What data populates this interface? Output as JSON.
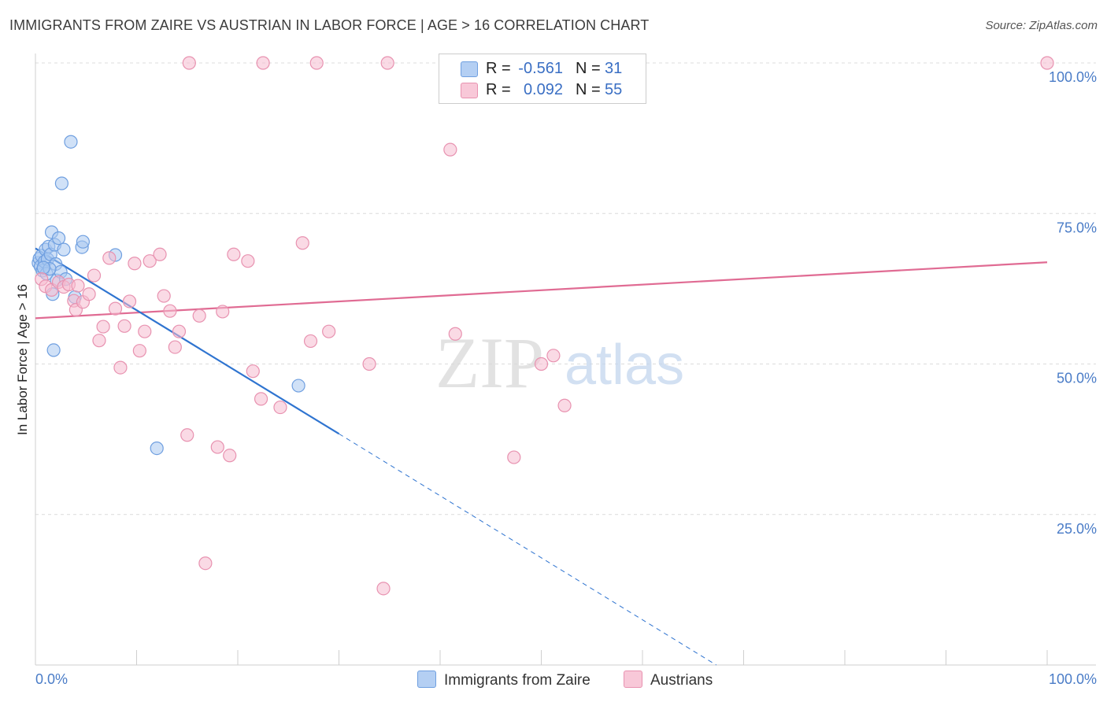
{
  "title": "IMMIGRANTS FROM ZAIRE VS AUSTRIAN IN LABOR FORCE | AGE > 16 CORRELATION CHART",
  "source": "Source: ZipAtlas.com",
  "watermark": {
    "zip": "ZIP",
    "atlas": "atlas"
  },
  "legend": {
    "rows": [
      {
        "r_label": "R =",
        "r_value": "-0.561",
        "n_label": "N =",
        "n_value": "31"
      },
      {
        "r_label": "R =",
        "r_value": "0.092",
        "n_label": "N =",
        "n_value": "55"
      }
    ]
  },
  "bottom_legend": {
    "series1": "Immigrants from Zaire",
    "series2": "Austrians"
  },
  "chart_data": {
    "type": "scatter",
    "title": "IMMIGRANTS FROM ZAIRE VS AUSTRIAN IN LABOR FORCE | AGE > 16 CORRELATION CHART",
    "xlabel": "",
    "ylabel": "In Labor Force | Age > 16",
    "xlim": [
      0,
      100
    ],
    "ylim": [
      0,
      100
    ],
    "x_tick_labels": [
      "0.0%",
      "100.0%"
    ],
    "y_ticks": [
      {
        "value": 100,
        "label": "100.0%"
      },
      {
        "value": 75,
        "label": "75.0%"
      },
      {
        "value": 50,
        "label": "50.0%"
      },
      {
        "value": 25,
        "label": "25.0%"
      }
    ],
    "grid": true,
    "series": [
      {
        "name": "Immigrants from Zaire",
        "color": "#6f9fe0",
        "fill": "#a9c8f1",
        "line_color": "#2f74d0",
        "R": -0.561,
        "N": 31,
        "trend": {
          "x0": 0,
          "y0": 69.2,
          "x1": 30,
          "y1": 38.4,
          "dash_to_x": 67.3,
          "dash_to_y": 0
        },
        "points": [
          [
            0.3,
            66.8
          ],
          [
            0.4,
            67.5
          ],
          [
            0.5,
            66.2
          ],
          [
            0.6,
            68.0
          ],
          [
            0.7,
            65.5
          ],
          [
            0.9,
            67.0
          ],
          [
            1.0,
            69.0
          ],
          [
            1.1,
            65.0
          ],
          [
            1.2,
            67.4
          ],
          [
            1.3,
            69.5
          ],
          [
            1.5,
            68.2
          ],
          [
            1.6,
            71.9
          ],
          [
            1.7,
            61.6
          ],
          [
            1.8,
            52.3
          ],
          [
            1.9,
            69.8
          ],
          [
            2.0,
            66.6
          ],
          [
            2.1,
            63.9
          ],
          [
            2.3,
            70.9
          ],
          [
            2.5,
            65.3
          ],
          [
            2.6,
            80.0
          ],
          [
            2.8,
            69.0
          ],
          [
            3.0,
            64.1
          ],
          [
            3.5,
            86.9
          ],
          [
            3.9,
            61.1
          ],
          [
            4.6,
            69.4
          ],
          [
            4.7,
            70.3
          ],
          [
            7.9,
            68.1
          ],
          [
            12.0,
            36.0
          ],
          [
            26.0,
            46.4
          ],
          [
            1.4,
            65.8
          ],
          [
            0.8,
            66.0
          ]
        ]
      },
      {
        "name": "Austrians",
        "color": "#e892b0",
        "fill": "#f6bcd0",
        "line_color": "#e06b93",
        "R": 0.092,
        "N": 55,
        "trend": {
          "x0": 0,
          "y0": 57.6,
          "x1": 100,
          "y1": 66.9
        },
        "points": [
          [
            0.6,
            64.1
          ],
          [
            1.0,
            62.9
          ],
          [
            1.6,
            62.3
          ],
          [
            2.3,
            63.6
          ],
          [
            2.8,
            62.8
          ],
          [
            3.3,
            63.2
          ],
          [
            3.8,
            60.5
          ],
          [
            4.0,
            59.0
          ],
          [
            4.7,
            60.3
          ],
          [
            5.3,
            61.6
          ],
          [
            5.8,
            64.7
          ],
          [
            6.3,
            53.9
          ],
          [
            6.7,
            56.2
          ],
          [
            7.3,
            67.6
          ],
          [
            7.9,
            59.2
          ],
          [
            8.4,
            49.4
          ],
          [
            8.8,
            56.3
          ],
          [
            9.3,
            60.4
          ],
          [
            9.8,
            66.7
          ],
          [
            10.3,
            52.2
          ],
          [
            10.8,
            55.4
          ],
          [
            11.3,
            67.1
          ],
          [
            12.3,
            68.2
          ],
          [
            12.7,
            61.3
          ],
          [
            13.3,
            58.8
          ],
          [
            13.8,
            52.8
          ],
          [
            14.2,
            55.4
          ],
          [
            15.0,
            38.2
          ],
          [
            15.2,
            100.0
          ],
          [
            16.2,
            58.0
          ],
          [
            16.8,
            16.9
          ],
          [
            18.0,
            36.2
          ],
          [
            18.5,
            58.7
          ],
          [
            19.2,
            34.8
          ],
          [
            19.6,
            68.2
          ],
          [
            21.0,
            67.1
          ],
          [
            21.5,
            48.8
          ],
          [
            22.3,
            44.2
          ],
          [
            22.5,
            100.0
          ],
          [
            24.2,
            42.8
          ],
          [
            26.4,
            70.1
          ],
          [
            27.2,
            53.8
          ],
          [
            27.8,
            100.0
          ],
          [
            29.0,
            55.4
          ],
          [
            33.0,
            50.0
          ],
          [
            34.4,
            12.7
          ],
          [
            34.8,
            100.0
          ],
          [
            41.0,
            85.6
          ],
          [
            41.5,
            55.0
          ],
          [
            47.3,
            34.5
          ],
          [
            50.0,
            50.0
          ],
          [
            51.2,
            51.4
          ],
          [
            52.3,
            43.1
          ],
          [
            100.0,
            100.0
          ],
          [
            4.2,
            63.0
          ]
        ]
      }
    ]
  }
}
